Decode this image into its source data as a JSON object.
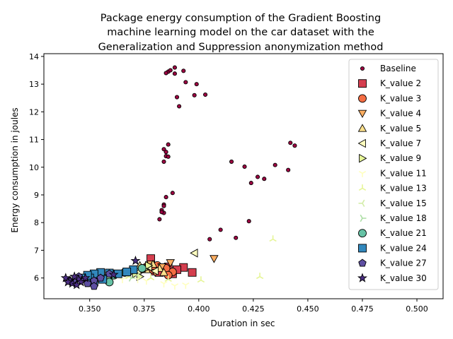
{
  "chart_data": {
    "type": "scatter",
    "title": "Package energy consumption of the Gradient Boosting machine learning model on the car dataset with the Generalization and Suppression anonymization method",
    "title_lines": [
      "Package energy consumption of the Gradient Boosting",
      "machine learning model on the car dataset with the",
      "Generalization and Suppression anonymization method"
    ],
    "xlabel": "Duration in sec",
    "ylabel": "Energy consumption in joules",
    "xlim": [
      0.329,
      0.512
    ],
    "ylim": [
      5.25,
      14.1
    ],
    "xticks": [
      0.35,
      0.375,
      0.4,
      0.425,
      0.45,
      0.475,
      0.5
    ],
    "xtick_labels": [
      "0.350",
      "0.375",
      "0.400",
      "0.425",
      "0.450",
      "0.475",
      "0.500"
    ],
    "yticks": [
      6,
      7,
      8,
      9,
      10,
      11,
      12,
      13,
      14
    ],
    "ytick_labels": [
      "6",
      "7",
      "8",
      "9",
      "10",
      "11",
      "12",
      "13",
      "14"
    ],
    "grid": false,
    "legend_position": "upper right",
    "series": [
      {
        "name": "Baseline",
        "marker": "circle-small",
        "color": "#9e0142",
        "points": [
          [
            0.386,
            13.45
          ],
          [
            0.387,
            13.5
          ],
          [
            0.389,
            13.6
          ],
          [
            0.393,
            13.48
          ],
          [
            0.389,
            13.38
          ],
          [
            0.385,
            13.4
          ],
          [
            0.399,
            13.0
          ],
          [
            0.394,
            13.07
          ],
          [
            0.39,
            12.53
          ],
          [
            0.403,
            12.62
          ],
          [
            0.398,
            12.6
          ],
          [
            0.391,
            12.2
          ],
          [
            0.386,
            10.82
          ],
          [
            0.384,
            10.65
          ],
          [
            0.385,
            10.55
          ],
          [
            0.385,
            10.4
          ],
          [
            0.386,
            10.38
          ],
          [
            0.384,
            10.2
          ],
          [
            0.442,
            10.88
          ],
          [
            0.444,
            10.78
          ],
          [
            0.415,
            10.2
          ],
          [
            0.421,
            10.02
          ],
          [
            0.435,
            10.08
          ],
          [
            0.441,
            9.9
          ],
          [
            0.427,
            9.65
          ],
          [
            0.43,
            9.58
          ],
          [
            0.424,
            9.43
          ],
          [
            0.388,
            9.07
          ],
          [
            0.385,
            8.92
          ],
          [
            0.384,
            8.65
          ],
          [
            0.384,
            8.6
          ],
          [
            0.383,
            8.45
          ],
          [
            0.384,
            8.35
          ],
          [
            0.383,
            8.38
          ],
          [
            0.382,
            8.12
          ],
          [
            0.423,
            8.05
          ],
          [
            0.41,
            7.74
          ],
          [
            0.417,
            7.45
          ],
          [
            0.405,
            7.4
          ]
        ]
      },
      {
        "name": "K_value 2",
        "marker": "square",
        "color": "#d53e4f",
        "points": [
          [
            0.393,
            6.38
          ],
          [
            0.397,
            6.2
          ],
          [
            0.388,
            6.15
          ],
          [
            0.383,
            6.3
          ],
          [
            0.38,
            6.25
          ],
          [
            0.386,
            6.4
          ],
          [
            0.378,
            6.7
          ],
          [
            0.39,
            6.3
          ],
          [
            0.382,
            6.2
          ]
        ]
      },
      {
        "name": "K_value 3",
        "marker": "circle",
        "color": "#f46d43",
        "points": [
          [
            0.388,
            6.22
          ],
          [
            0.385,
            6.35
          ],
          [
            0.381,
            6.45
          ],
          [
            0.379,
            6.3
          ],
          [
            0.386,
            6.1
          ],
          [
            0.376,
            6.4
          ]
        ]
      },
      {
        "name": "K_value 4",
        "marker": "triangle-down",
        "color": "#fdae61",
        "points": [
          [
            0.407,
            6.7
          ],
          [
            0.387,
            6.55
          ],
          [
            0.383,
            6.4
          ],
          [
            0.378,
            6.5
          ],
          [
            0.38,
            6.2
          ]
        ]
      },
      {
        "name": "K_value 5",
        "marker": "triangle-up",
        "color": "#fee08b",
        "points": [
          [
            0.382,
            6.35
          ],
          [
            0.379,
            6.5
          ],
          [
            0.376,
            6.3
          ],
          [
            0.384,
            6.2
          ],
          [
            0.373,
            6.45
          ]
        ]
      },
      {
        "name": "K_value 7",
        "marker": "triangle-left",
        "color": "#ffffbf",
        "points": [
          [
            0.398,
            6.9
          ],
          [
            0.38,
            6.25
          ],
          [
            0.377,
            6.4
          ],
          [
            0.374,
            6.35
          ],
          [
            0.372,
            6.2
          ]
        ]
      },
      {
        "name": "K_value 9",
        "marker": "triangle-right",
        "color": "#e6f598",
        "points": [
          [
            0.377,
            6.45
          ],
          [
            0.375,
            6.3
          ],
          [
            0.371,
            6.15
          ],
          [
            0.373,
            6.05
          ],
          [
            0.369,
            6.2
          ]
        ]
      },
      {
        "name": "K_value 11",
        "marker": "tri-down",
        "color": "#ffffbf",
        "points": [
          [
            0.389,
            5.72
          ],
          [
            0.394,
            5.75
          ],
          [
            0.384,
            5.8
          ],
          [
            0.376,
            5.9
          ],
          [
            0.372,
            5.95
          ],
          [
            0.365,
            5.95
          ]
        ]
      },
      {
        "name": "K_value 13",
        "marker": "tri-up",
        "color": "#e6f598",
        "points": [
          [
            0.434,
            7.4
          ],
          [
            0.428,
            6.05
          ],
          [
            0.401,
            5.92
          ],
          [
            0.386,
            5.95
          ],
          [
            0.378,
            6.0
          ],
          [
            0.368,
            6.05
          ]
        ]
      },
      {
        "name": "K_value 15",
        "marker": "tri-left",
        "color": "#d4edaa",
        "points": [
          [
            0.372,
            6.1
          ],
          [
            0.366,
            6.15
          ],
          [
            0.361,
            6.05
          ],
          [
            0.357,
            6.2
          ]
        ]
      },
      {
        "name": "K_value 18",
        "marker": "tri-right",
        "color": "#abdda4",
        "points": [
          [
            0.369,
            6.0
          ],
          [
            0.363,
            6.1
          ],
          [
            0.358,
            6.0
          ],
          [
            0.354,
            6.15
          ]
        ]
      },
      {
        "name": "K_value 21",
        "marker": "circle",
        "color": "#66c2a5",
        "points": [
          [
            0.374,
            6.35
          ],
          [
            0.359,
            5.85
          ],
          [
            0.366,
            6.2
          ],
          [
            0.356,
            6.0
          ],
          [
            0.361,
            6.1
          ]
        ]
      },
      {
        "name": "K_value 24",
        "marker": "square",
        "color": "#3288bd",
        "points": [
          [
            0.37,
            6.3
          ],
          [
            0.367,
            6.22
          ],
          [
            0.363,
            6.15
          ],
          [
            0.359,
            6.18
          ],
          [
            0.355,
            6.2
          ],
          [
            0.352,
            6.15
          ],
          [
            0.35,
            6.0
          ],
          [
            0.356,
            5.95
          ],
          [
            0.352,
            5.85
          ],
          [
            0.349,
            6.1
          ],
          [
            0.346,
            6.0
          ]
        ]
      },
      {
        "name": "K_value 27",
        "marker": "pentagon",
        "color": "#5e4fa2",
        "points": [
          [
            0.359,
            6.15
          ],
          [
            0.355,
            6.0
          ],
          [
            0.352,
            5.9
          ],
          [
            0.352,
            5.7
          ],
          [
            0.349,
            5.8
          ],
          [
            0.346,
            5.95
          ],
          [
            0.343,
            5.85
          ],
          [
            0.341,
            5.9
          ],
          [
            0.345,
            6.05
          ]
        ]
      },
      {
        "name": "K_value 30",
        "marker": "star",
        "color": "#4b2e83",
        "points": [
          [
            0.371,
            6.62
          ],
          [
            0.361,
            6.12
          ],
          [
            0.348,
            6.0
          ],
          [
            0.345,
            5.95
          ],
          [
            0.343,
            6.05
          ],
          [
            0.341,
            5.9
          ],
          [
            0.339,
            6.0
          ],
          [
            0.342,
            5.8
          ],
          [
            0.346,
            5.85
          ],
          [
            0.344,
            5.75
          ],
          [
            0.34,
            5.85
          ]
        ]
      }
    ]
  }
}
